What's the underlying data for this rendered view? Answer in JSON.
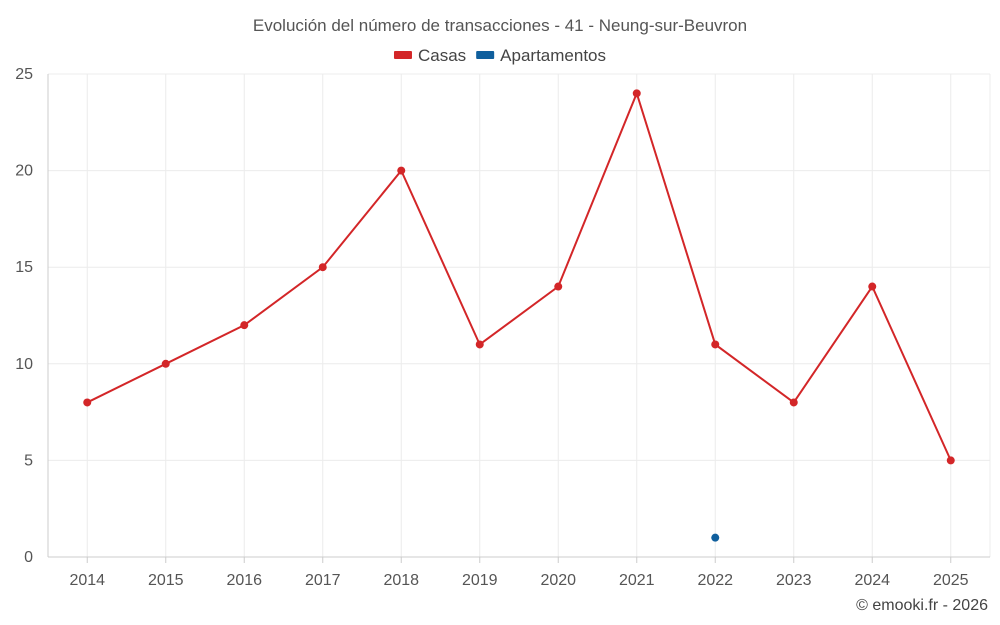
{
  "chart_data": {
    "type": "line",
    "title": "Evolución del número de transacciones - 41 - Neung-sur-Beuvron",
    "categories": [
      "2014",
      "2015",
      "2016",
      "2017",
      "2018",
      "2019",
      "2020",
      "2021",
      "2022",
      "2023",
      "2024",
      "2025"
    ],
    "ylim": [
      0,
      25
    ],
    "yticks": [
      0,
      5,
      10,
      15,
      20,
      25
    ],
    "grid": true,
    "legend_position": "top-center",
    "series": [
      {
        "name": "Casas",
        "color": "#d32628",
        "values": [
          8,
          10,
          12,
          15,
          20,
          11,
          14,
          24,
          11,
          8,
          14,
          5
        ]
      },
      {
        "name": "Apartamentos",
        "color": "#0f5f9d",
        "values": [
          null,
          null,
          null,
          null,
          null,
          null,
          null,
          null,
          1,
          null,
          null,
          null
        ]
      }
    ]
  },
  "credit": "© emooki.fr - 2026"
}
